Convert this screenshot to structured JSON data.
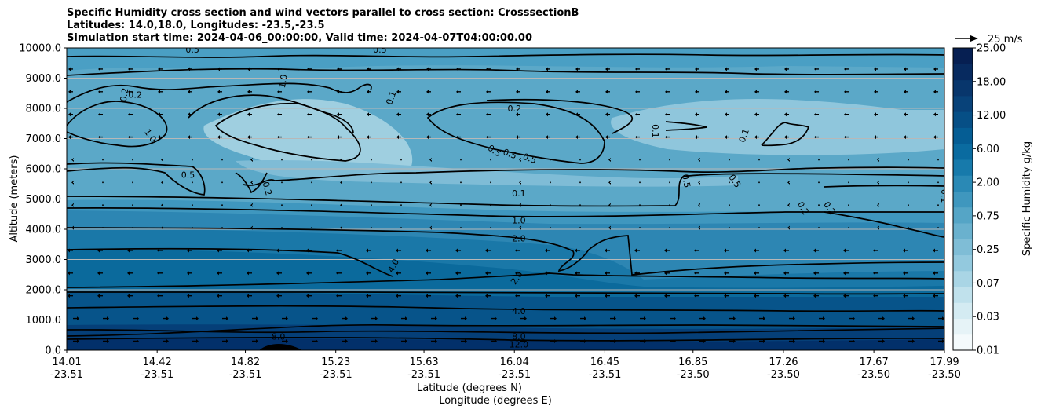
{
  "chart_data": {
    "type": "heatmap",
    "title_lines": [
      "Specific Humidity cross section and wind vectors parallel to cross section: CrosssectionB",
      "Latitudes: 14.0,18.0, Longitudes: -23.5,-23.5",
      "Simulation start time: 2024-04-06_00:00:00, Valid time: 2024-04-07T04:00:00.00"
    ],
    "ylabel": "Altitude (meters)",
    "xlabel_lat": "Latitude (degrees N)",
    "xlabel_lon": "Longitude (degrees E)",
    "ylim": [
      0,
      10000
    ],
    "y_ticks": [
      "0.0",
      "1000.0",
      "2000.0",
      "3000.0",
      "4000.0",
      "5000.0",
      "6000.0",
      "7000.0",
      "8000.0",
      "9000.0",
      "10000.0"
    ],
    "x_ticks": [
      {
        "lat": "14.01",
        "lon": "-23.51"
      },
      {
        "lat": "14.42",
        "lon": "-23.51"
      },
      {
        "lat": "14.82",
        "lon": "-23.51"
      },
      {
        "lat": "15.23",
        "lon": "-23.51"
      },
      {
        "lat": "15.63",
        "lon": "-23.51"
      },
      {
        "lat": "16.04",
        "lon": "-23.51"
      },
      {
        "lat": "16.45",
        "lon": "-23.51"
      },
      {
        "lat": "16.85",
        "lon": "-23.50"
      },
      {
        "lat": "17.26",
        "lon": "-23.50"
      },
      {
        "lat": "17.67",
        "lon": "-23.50"
      },
      {
        "lat": "17.99",
        "lon": "-23.50"
      }
    ],
    "colorbar_label": "Specific Humidity g/kg",
    "colorbar_ticks": [
      "0.01",
      "0.03",
      "0.07",
      "0.25",
      "0.75",
      "2.00",
      "6.00",
      "12.00",
      "18.00",
      "25.00"
    ],
    "quiver_key": "25 m/s",
    "contour_labels": [
      {
        "text": "0.5",
        "lat": 14.58,
        "alt": 9950
      },
      {
        "text": "0.5",
        "lat": 15.43,
        "alt": 9950
      },
      {
        "text": "0.2",
        "lat": 14.27,
        "alt": 8450,
        "rot": -80
      },
      {
        "text": "0.2",
        "lat": 14.32,
        "alt": 8450
      },
      {
        "text": "1.0",
        "lat": 14.99,
        "alt": 8900,
        "rot": -80
      },
      {
        "text": "0.1",
        "lat": 15.48,
        "alt": 8350,
        "rot": -70
      },
      {
        "text": "0.2",
        "lat": 16.04,
        "alt": 8000
      },
      {
        "text": "1.0",
        "lat": 14.39,
        "alt": 7100,
        "rot": 55
      },
      {
        "text": "0.1",
        "lat": 16.68,
        "alt": 7250,
        "rot": 90
      },
      {
        "text": "0.1",
        "lat": 17.08,
        "alt": 7100,
        "rot": -70
      },
      {
        "text": "0.5",
        "lat": 15.95,
        "alt": 6600,
        "rot": 35
      },
      {
        "text": "0.5",
        "lat": 16.02,
        "alt": 6500,
        "rot": 20
      },
      {
        "text": "0.5",
        "lat": 16.11,
        "alt": 6350,
        "rot": 20
      },
      {
        "text": "0.5",
        "lat": 14.56,
        "alt": 5800
      },
      {
        "text": "0.2",
        "lat": 14.92,
        "alt": 5350,
        "rot": 75
      },
      {
        "text": "0.5",
        "lat": 16.82,
        "alt": 5600,
        "rot": 80
      },
      {
        "text": "0.5",
        "lat": 17.04,
        "alt": 5600,
        "rot": 55
      },
      {
        "text": "0.1",
        "lat": 16.06,
        "alt": 5200
      },
      {
        "text": "0.2",
        "lat": 17.35,
        "alt": 4700,
        "rot": 60
      },
      {
        "text": "0.2",
        "lat": 17.47,
        "alt": 4700,
        "rot": 55
      },
      {
        "text": "0.1",
        "lat": 17.99,
        "alt": 5100,
        "rot": 90
      },
      {
        "text": "1.0",
        "lat": 16.06,
        "alt": 4300
      },
      {
        "text": "2.0",
        "lat": 16.06,
        "alt": 3700
      },
      {
        "text": "4.0",
        "lat": 15.49,
        "alt": 2800,
        "rot": -60
      },
      {
        "text": "2.0",
        "lat": 16.05,
        "alt": 2400,
        "rot": -55
      },
      {
        "text": "4.0",
        "lat": 16.06,
        "alt": 1300
      },
      {
        "text": "8.0",
        "lat": 14.97,
        "alt": 450
      },
      {
        "text": "8.0",
        "lat": 16.06,
        "alt": 450
      },
      {
        "text": "12.0",
        "lat": 16.06,
        "alt": 200
      }
    ]
  }
}
